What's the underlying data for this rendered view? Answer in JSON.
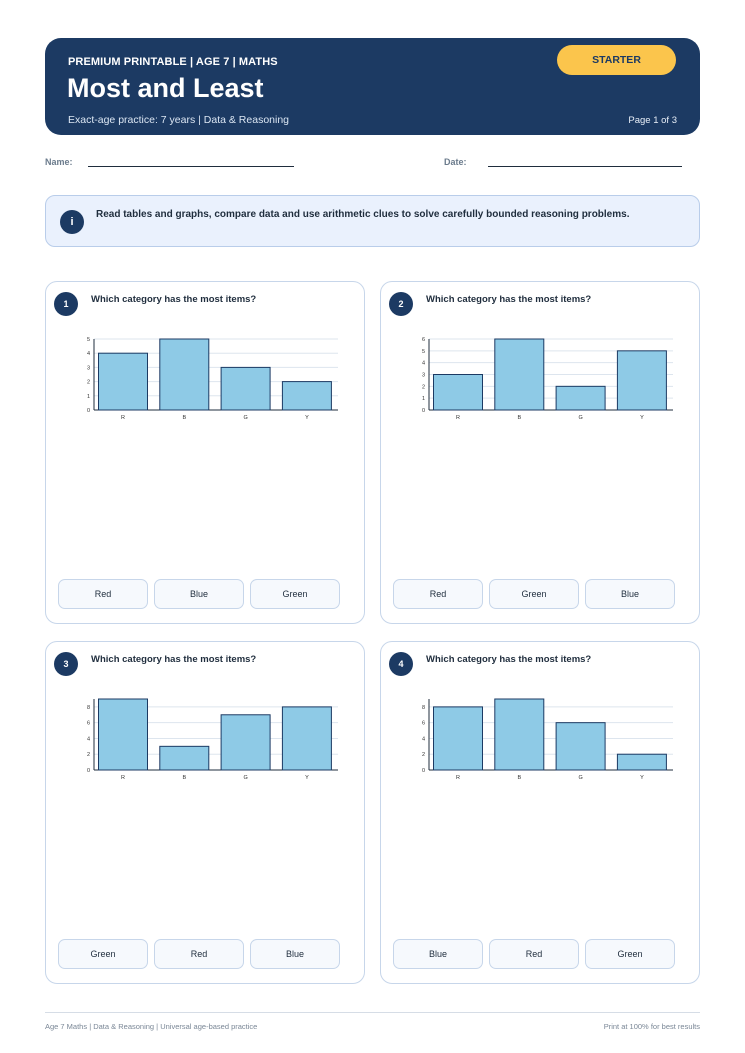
{
  "header": {
    "eyebrow": "PREMIUM PRINTABLE | AGE 7 | MATHS",
    "title": "Most and Least",
    "subtitle": "Exact-age practice: 7 years | Data & Reasoning",
    "badge": "STARTER",
    "page": "Page 1 of 3"
  },
  "fields": {
    "name": "Name:",
    "date": "Date:"
  },
  "info": {
    "icon": "i",
    "text": "Read tables and graphs, compare data and use arithmetic clues to solve carefully bounded reasoning problems."
  },
  "questions": [
    {
      "number": "1",
      "text": "Which category has the most items?",
      "options": [
        "Red",
        "Blue",
        "Green"
      ]
    },
    {
      "number": "2",
      "text": "Which category has the most items?",
      "options": [
        "Red",
        "Green",
        "Blue"
      ]
    },
    {
      "number": "3",
      "text": "Which category has the most items?",
      "options": [
        "Green",
        "Red",
        "Blue"
      ]
    },
    {
      "number": "4",
      "text": "Which category has the most items?",
      "options": [
        "Blue",
        "Red",
        "Green"
      ]
    }
  ],
  "colors": {
    "bar": "#8ecae6",
    "bar_stroke": "#1c3a63",
    "accent": "#fbc54c",
    "navy": "#1c3a63"
  },
  "chart_data": [
    {
      "type": "bar",
      "categories": [
        "R",
        "B",
        "G",
        "Y"
      ],
      "values": [
        4,
        5,
        3,
        2
      ],
      "ylim": [
        0,
        5
      ],
      "yticks": [
        0,
        1,
        2,
        3,
        4,
        5
      ],
      "grid": true
    },
    {
      "type": "bar",
      "categories": [
        "R",
        "B",
        "G",
        "Y"
      ],
      "values": [
        3,
        6,
        2,
        5
      ],
      "ylim": [
        0,
        6
      ],
      "yticks": [
        0,
        1,
        2,
        3,
        4,
        5,
        6
      ],
      "grid": true
    },
    {
      "type": "bar",
      "categories": [
        "R",
        "B",
        "G",
        "Y"
      ],
      "values": [
        9,
        3,
        7,
        8
      ],
      "ylim": [
        0,
        9
      ],
      "yticks": [
        0,
        2,
        4,
        6,
        8
      ],
      "grid": true
    },
    {
      "type": "bar",
      "categories": [
        "R",
        "B",
        "G",
        "Y"
      ],
      "values": [
        8,
        9,
        6,
        2
      ],
      "ylim": [
        0,
        9
      ],
      "yticks": [
        0,
        2,
        4,
        6,
        8
      ],
      "grid": true
    }
  ],
  "footer": {
    "left": "Age 7 Maths | Data & Reasoning | Universal age-based practice",
    "right": "Print at 100% for best results"
  }
}
